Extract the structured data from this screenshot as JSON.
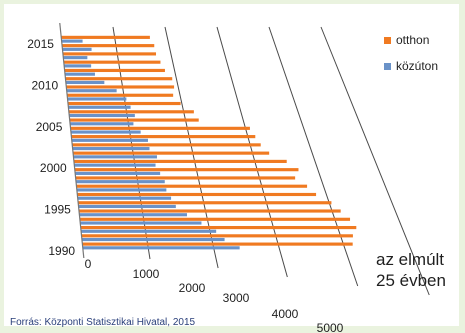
{
  "chart_data": {
    "type": "bar",
    "orientation": "horizontal",
    "categories": [
      1990,
      1991,
      1992,
      1993,
      1994,
      1995,
      1996,
      1997,
      1998,
      1999,
      2000,
      2001,
      2002,
      2003,
      2004,
      2005,
      2006,
      2007,
      2008,
      2009,
      2010,
      2011,
      2012,
      2013,
      2014,
      2015
    ],
    "year_tick_labels": [
      "1990",
      "1995",
      "2000",
      "2005",
      "2010",
      "2015"
    ],
    "series": [
      {
        "name": "otthon",
        "color": "#f07a21",
        "values": [
          4150,
          4200,
          4300,
          4250,
          4150,
          4050,
          3850,
          3750,
          3600,
          3700,
          3550,
          3300,
          3200,
          3150,
          3100,
          2250,
          2200,
          2000,
          1900,
          1950,
          1950,
          1850,
          1800,
          1750,
          1750,
          1700
        ]
      },
      {
        "name": "közúton",
        "color": "#6a92c8",
        "values": [
          2400,
          2200,
          2100,
          1900,
          1700,
          1550,
          1500,
          1450,
          1450,
          1400,
          1350,
          1400,
          1300,
          1300,
          1200,
          1100,
          1150,
          1100,
          1050,
          900,
          700,
          550,
          500,
          450,
          550,
          400
        ]
      }
    ],
    "x_ticks": [
      "0",
      "1000",
      "2000",
      "3000",
      "4000",
      "5000"
    ],
    "xlim": [
      0,
      5000
    ],
    "legend_position": "right",
    "grid": true
  },
  "annotation": "az elmúlt\n25 évben",
  "source": "Forrás: Központi Statisztikai Hivatal, 2015"
}
